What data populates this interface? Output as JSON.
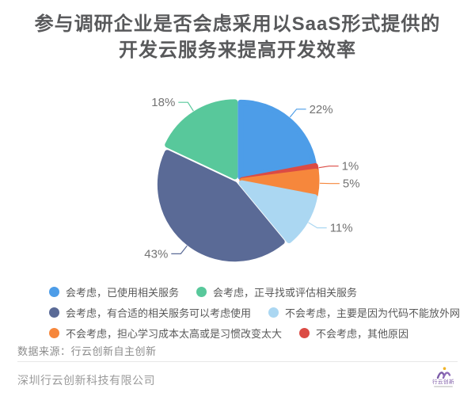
{
  "title": {
    "line1": "参与调研企业是否会虑采用以SaaS形式提供的",
    "line2": "开发云服务来提高开发效率"
  },
  "chart_data": {
    "type": "pie",
    "start_angle": "top",
    "direction": "clockwise",
    "total": 100,
    "slices": [
      {
        "label": "会考虑，已使用相关服务",
        "value": 22,
        "pct_label": "22%",
        "color": "#4D9DE8"
      },
      {
        "label": "不会考虑，其他原因",
        "value": 1,
        "pct_label": "1%",
        "color": "#DB4B44"
      },
      {
        "label": "不会考虑，担心学习成本太高或是习惯改变太大",
        "value": 5,
        "pct_label": "5%",
        "color": "#F6873C"
      },
      {
        "label": "不会考虑，主要是因为代码不能放外网",
        "value": 11,
        "pct_label": "11%",
        "color": "#ABD7F2"
      },
      {
        "label": "会考虑，有合适的相关服务可以考虑使用",
        "value": 43,
        "pct_label": "43%",
        "color": "#5A6A96"
      },
      {
        "label": "会考虑，正寻找或评估相关服务",
        "value": 18,
        "pct_label": "18%",
        "color": "#58C89B"
      }
    ],
    "legend_order": [
      0,
      5,
      4,
      3,
      2,
      1
    ],
    "legend_position": "bottom-left",
    "label_color": "#737373"
  },
  "footer": {
    "source": "数据来源：行云创新自主创新",
    "company": "深圳行云创新科技有限公司",
    "logo_text": "行云创新"
  }
}
